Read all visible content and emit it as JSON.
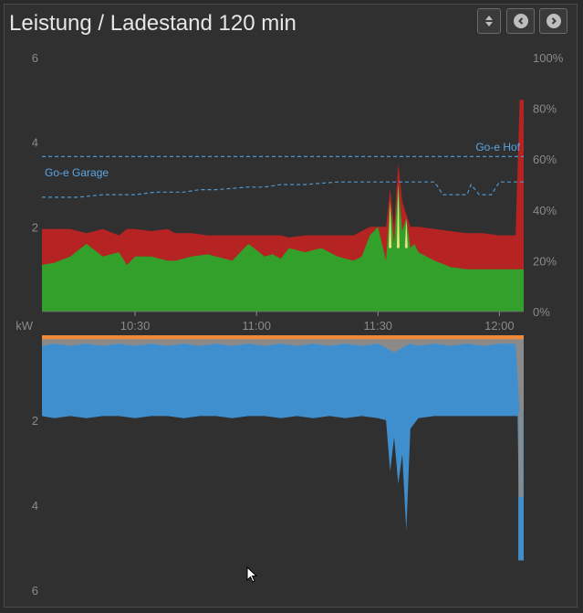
{
  "header": {
    "title": "Leistung / Ladestand 120 min",
    "sort_icon": "sort-arrows-icon",
    "prev_icon": "chevron-left-icon",
    "next_icon": "chevron-right-icon"
  },
  "colors": {
    "background": "#303030",
    "axis_text": "#8a8a8a",
    "pv_green": "#33a02c",
    "consumption_red": "#b52323",
    "battery_yellow": "#e8e27a",
    "grid_blue": "#3f8fcf",
    "grey_fill": "#8a8a8a",
    "orange_bar": "#f08a3a",
    "dashed_blue": "#4f97d0",
    "label_blue": "#5aa6e6"
  },
  "chart_data": [
    {
      "type": "area",
      "name": "upper",
      "x_labels": [
        "10:30",
        "11:00",
        "11:30",
        "12:00"
      ],
      "x_tick_minutes": [
        30,
        60,
        90,
        120
      ],
      "x_range_minutes": [
        7,
        126
      ],
      "y_left_ticks": [
        "6",
        "4",
        "2"
      ],
      "y_left_range": [
        0,
        6
      ],
      "y_right_ticks": [
        "100%",
        "80%",
        "60%",
        "40%",
        "20%",
        "0%"
      ],
      "y_right_range": [
        0,
        100
      ],
      "unit_label": "kW",
      "annotations": [
        "Go-e Hof",
        "Go-e Garage"
      ],
      "series": [
        {
          "name": "pv_green",
          "x": [
            7,
            10,
            14,
            18,
            22,
            26,
            28,
            30,
            34,
            38,
            40,
            44,
            48,
            50,
            54,
            58,
            62,
            64,
            66,
            68,
            72,
            76,
            80,
            84,
            86,
            88,
            90,
            92,
            93,
            94,
            95,
            96,
            97,
            98,
            99,
            100,
            104,
            108,
            112,
            116,
            120,
            124,
            125,
            126
          ],
          "values": [
            1.1,
            1.15,
            1.3,
            1.6,
            1.3,
            1.4,
            1.1,
            1.3,
            1.3,
            1.2,
            1.2,
            1.3,
            1.35,
            1.3,
            1.2,
            1.6,
            1.3,
            1.35,
            1.25,
            1.5,
            1.4,
            1.5,
            1.3,
            1.2,
            1.3,
            1.8,
            2.0,
            1.2,
            2.6,
            1.6,
            3.0,
            1.9,
            2.2,
            1.5,
            1.6,
            1.4,
            1.2,
            1.05,
            1.0,
            1.0,
            1.0,
            1.0,
            1.0,
            1.0
          ]
        },
        {
          "name": "consumption_red",
          "x": [
            7,
            10,
            14,
            18,
            22,
            26,
            28,
            30,
            34,
            38,
            40,
            44,
            48,
            50,
            54,
            58,
            62,
            64,
            66,
            68,
            72,
            76,
            80,
            84,
            86,
            88,
            90,
            92,
            93,
            94,
            95,
            96,
            97,
            98,
            99,
            100,
            104,
            108,
            112,
            116,
            120,
            124,
            125,
            126
          ],
          "values": [
            1.95,
            1.95,
            1.95,
            1.85,
            1.95,
            1.8,
            1.95,
            1.95,
            1.9,
            1.95,
            1.85,
            1.85,
            1.8,
            1.8,
            1.8,
            1.8,
            1.8,
            1.8,
            1.8,
            1.75,
            1.8,
            1.8,
            1.8,
            1.8,
            1.9,
            2.0,
            2.0,
            2.0,
            2.9,
            2.0,
            3.5,
            2.6,
            2.3,
            2.0,
            2.0,
            2.0,
            1.95,
            1.9,
            1.85,
            1.85,
            1.8,
            1.8,
            5.0,
            5.0
          ]
        },
        {
          "name": "Go-e Hof",
          "unit": "%",
          "x": [
            7,
            126
          ],
          "values": [
            61,
            61
          ]
        },
        {
          "name": "Go-e Garage",
          "unit": "%",
          "x": [
            7,
            16,
            22,
            30,
            35,
            42,
            46,
            50,
            58,
            62,
            66,
            72,
            80,
            84,
            90,
            94,
            96,
            100,
            104,
            106,
            110,
            112,
            113,
            115,
            116,
            118,
            120,
            122,
            126
          ],
          "values": [
            45,
            45,
            46,
            46,
            47,
            47,
            48,
            48,
            49,
            49,
            50,
            50,
            51,
            51,
            51,
            51,
            51,
            51,
            51,
            46,
            46,
            46,
            50,
            46,
            46,
            46,
            51,
            51,
            51
          ]
        }
      ]
    },
    {
      "type": "area",
      "name": "lower",
      "x_range_minutes": [
        7,
        126
      ],
      "y_left_ticks": [
        "2",
        "4",
        "6"
      ],
      "y_left_range": [
        0,
        6
      ],
      "inverted": true,
      "series": [
        {
          "name": "grid_blue",
          "x": [
            7,
            10,
            14,
            18,
            22,
            26,
            30,
            34,
            38,
            42,
            46,
            50,
            54,
            58,
            62,
            66,
            70,
            74,
            78,
            82,
            86,
            90,
            92,
            93,
            94,
            95,
            96,
            97,
            98,
            100,
            104,
            108,
            112,
            116,
            120,
            124,
            124.5,
            125,
            125.5,
            126
          ],
          "values": [
            1.9,
            1.95,
            1.9,
            1.95,
            1.9,
            1.9,
            1.95,
            1.9,
            1.9,
            1.95,
            1.9,
            1.9,
            1.95,
            1.9,
            1.9,
            1.95,
            1.9,
            1.95,
            1.9,
            1.95,
            1.9,
            1.95,
            2.0,
            3.2,
            2.4,
            3.5,
            2.8,
            4.6,
            2.2,
            1.95,
            1.9,
            1.9,
            1.9,
            1.9,
            1.9,
            1.9,
            1.9,
            5.3,
            5.3,
            5.3
          ]
        },
        {
          "name": "grey_fill",
          "x": [
            7,
            10,
            14,
            18,
            22,
            26,
            30,
            34,
            38,
            42,
            46,
            50,
            54,
            58,
            62,
            66,
            70,
            74,
            78,
            82,
            86,
            90,
            92,
            94,
            96,
            98,
            100,
            104,
            108,
            112,
            116,
            120,
            124,
            125,
            126
          ],
          "values": [
            0.25,
            0.2,
            0.25,
            0.2,
            0.25,
            0.2,
            0.25,
            0.2,
            0.25,
            0.2,
            0.25,
            0.2,
            0.25,
            0.2,
            0.25,
            0.2,
            0.25,
            0.2,
            0.25,
            0.2,
            0.25,
            0.2,
            0.3,
            0.4,
            0.3,
            0.2,
            0.25,
            0.2,
            0.25,
            0.2,
            0.25,
            0.2,
            0.2,
            1.8,
            1.8
          ]
        },
        {
          "name": "orange_bar",
          "x": [
            7,
            126
          ],
          "values": [
            0.05,
            0.05
          ]
        }
      ]
    }
  ]
}
